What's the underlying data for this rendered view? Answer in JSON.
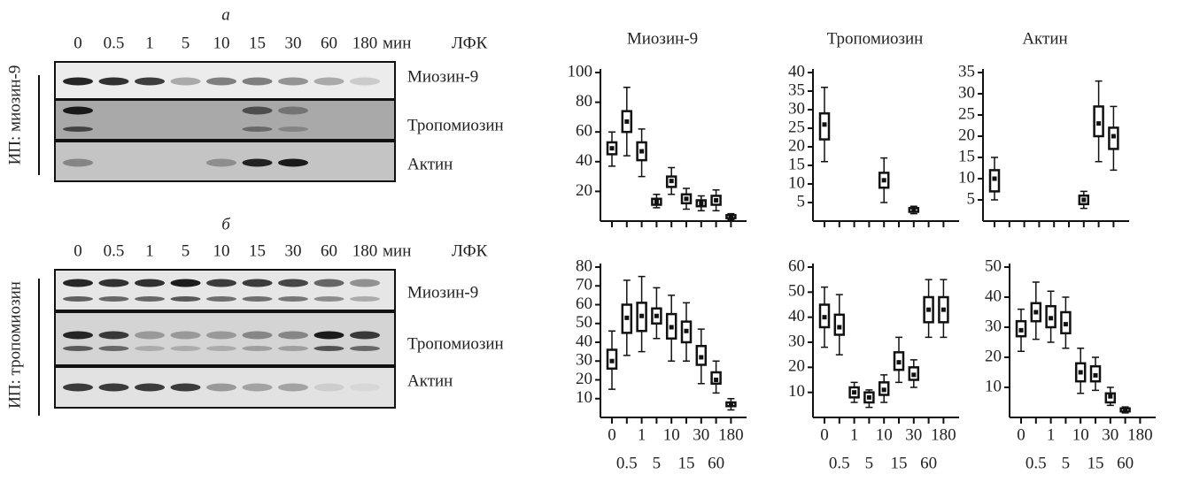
{
  "panels": [
    {
      "letter": "а",
      "lanes": [
        "0",
        "0.5",
        "1",
        "5",
        "10",
        "15",
        "30",
        "60",
        "180"
      ],
      "unit": "мин",
      "treatment": "ЛФК",
      "bands": [
        "Миозин-9",
        "Тропомиозин",
        "Актин"
      ],
      "ip_label": "ИП: миозин-9"
    },
    {
      "letter": "б",
      "lanes": [
        "0",
        "0.5",
        "1",
        "5",
        "10",
        "15",
        "30",
        "60",
        "180"
      ],
      "unit": "мин",
      "treatment": "ЛФК",
      "bands": [
        "Миозин-9",
        "Тропомиозин",
        "Актин"
      ],
      "ip_label": "ИП: тропомиозин"
    }
  ],
  "chart_data": [
    {
      "type": "box",
      "title": "Миозин-9",
      "categories": [
        null,
        null,
        null,
        null,
        null,
        null,
        null,
        null,
        null
      ],
      "low": [
        37,
        44,
        30,
        9,
        18,
        8,
        7,
        7,
        1
      ],
      "q1": [
        45,
        60,
        41,
        11,
        23,
        12,
        10,
        11,
        2
      ],
      "median": [
        49,
        67,
        47,
        13,
        27,
        15,
        12,
        14,
        3
      ],
      "q3": [
        53,
        74,
        53,
        15,
        30,
        18,
        14,
        17,
        4
      ],
      "high": [
        60,
        90,
        62,
        18,
        36,
        22,
        17,
        21,
        5
      ],
      "ylim": [
        0,
        100
      ],
      "yticks": [
        20,
        40,
        60,
        80,
        100
      ]
    },
    {
      "type": "box",
      "title": "Тропомиозин",
      "categories": [
        null,
        null,
        null,
        null,
        null,
        null,
        null,
        null,
        null
      ],
      "low": [
        16,
        null,
        null,
        null,
        5,
        null,
        2,
        null,
        null
      ],
      "q1": [
        22,
        null,
        null,
        null,
        9,
        null,
        2.5,
        null,
        null
      ],
      "median": [
        26,
        null,
        null,
        null,
        11,
        null,
        3,
        null,
        null
      ],
      "q3": [
        29,
        null,
        null,
        null,
        13,
        null,
        3.5,
        null,
        null
      ],
      "high": [
        36,
        null,
        null,
        null,
        17,
        null,
        4,
        null,
        null
      ],
      "ylim": [
        0,
        40
      ],
      "yticks": [
        5,
        10,
        15,
        20,
        25,
        30,
        35,
        40
      ]
    },
    {
      "type": "box",
      "title": "Актин",
      "categories": [
        null,
        null,
        null,
        null,
        null,
        null,
        null,
        null,
        null
      ],
      "low": [
        5,
        null,
        null,
        null,
        null,
        null,
        3,
        14,
        12
      ],
      "q1": [
        7,
        null,
        null,
        null,
        null,
        null,
        4,
        20,
        17
      ],
      "median": [
        10,
        null,
        null,
        null,
        null,
        null,
        5,
        23,
        20
      ],
      "q3": [
        12,
        null,
        null,
        null,
        null,
        null,
        6,
        27,
        22
      ],
      "high": [
        15,
        null,
        null,
        null,
        null,
        null,
        7,
        33,
        27
      ],
      "ylim": [
        0,
        35
      ],
      "yticks": [
        5,
        10,
        15,
        20,
        25,
        30,
        35
      ]
    },
    {
      "type": "box",
      "categories": [
        "0",
        "0.5",
        "1",
        "5",
        "10",
        "15",
        "30",
        "60",
        "180"
      ],
      "low": [
        15,
        33,
        35,
        42,
        30,
        30,
        18,
        13,
        4
      ],
      "q1": [
        26,
        45,
        46,
        50,
        42,
        40,
        28,
        18,
        6
      ],
      "median": [
        30,
        53,
        54,
        54,
        48,
        46,
        32,
        20,
        7
      ],
      "q3": [
        36,
        60,
        61,
        58,
        55,
        51,
        38,
        24,
        8
      ],
      "high": [
        46,
        73,
        75,
        69,
        65,
        61,
        47,
        30,
        10
      ],
      "ylim": [
        0,
        80
      ],
      "yticks": [
        10,
        20,
        30,
        40,
        50,
        60,
        70,
        80
      ]
    },
    {
      "type": "box",
      "categories": [
        "0",
        "0.5",
        "1",
        "5",
        "10",
        "15",
        "30",
        "60",
        "180"
      ],
      "low": [
        28,
        25,
        6,
        4,
        6,
        14,
        12,
        32,
        32
      ],
      "q1": [
        36,
        33,
        8,
        6,
        9,
        19,
        15,
        38,
        38
      ],
      "median": [
        40,
        36,
        10,
        8,
        11,
        22,
        17,
        43,
        43
      ],
      "q3": [
        45,
        41,
        12,
        10,
        14,
        26,
        20,
        48,
        48
      ],
      "high": [
        52,
        49,
        14,
        11,
        17,
        32,
        23,
        55,
        55
      ],
      "ylim": [
        0,
        60
      ],
      "yticks": [
        10,
        20,
        30,
        40,
        50,
        60
      ]
    },
    {
      "type": "box",
      "categories": [
        "0",
        "0.5",
        "1",
        "5",
        "10",
        "15",
        "30",
        "60",
        "180"
      ],
      "low": [
        22,
        26,
        25,
        23,
        8,
        9,
        4,
        1.5,
        null
      ],
      "q1": [
        27,
        32,
        30,
        28,
        12,
        12,
        5,
        2,
        null
      ],
      "median": [
        29,
        35,
        33,
        31,
        15,
        14,
        7,
        2.5,
        null
      ],
      "q3": [
        32,
        38,
        37,
        35,
        18,
        17,
        8,
        3,
        null
      ],
      "high": [
        36,
        45,
        42,
        40,
        23,
        20,
        10,
        3.5,
        null
      ],
      "ylim": [
        0,
        50
      ],
      "yticks": [
        10,
        20,
        30,
        40,
        50
      ]
    }
  ]
}
